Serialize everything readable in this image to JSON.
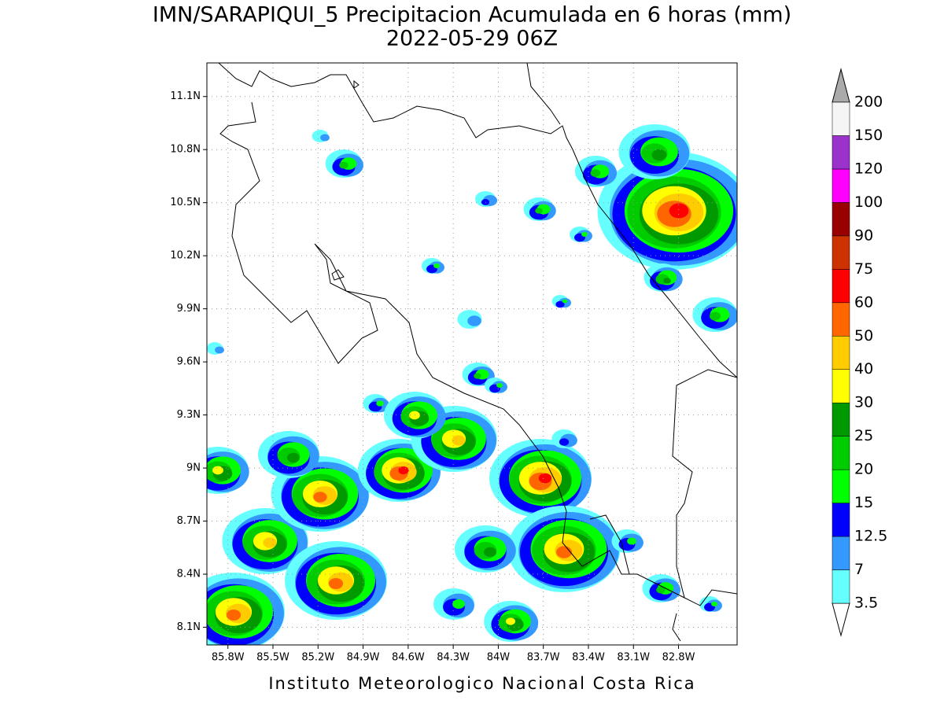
{
  "title": "IMN/SARAPIQUI_5 Precipitacion Acumulada en 6 horas (mm)",
  "subtitle": "2022-05-29 06Z",
  "footer": "Instituto Meteorologico Nacional Costa Rica",
  "map": {
    "xlim": [
      -85.94,
      -82.41
    ],
    "ylim": [
      8.0,
      11.29
    ],
    "grid": true,
    "xticks": [
      {
        "value": -85.8,
        "label": "85.8W"
      },
      {
        "value": -85.5,
        "label": "85.5W"
      },
      {
        "value": -85.2,
        "label": "85.2W"
      },
      {
        "value": -84.9,
        "label": "84.9W"
      },
      {
        "value": -84.6,
        "label": "84.6W"
      },
      {
        "value": -84.3,
        "label": "84.3W"
      },
      {
        "value": -84,
        "label": "84W"
      },
      {
        "value": -83.7,
        "label": "83.7W"
      },
      {
        "value": -83.4,
        "label": "83.4W"
      },
      {
        "value": -83.1,
        "label": "83.1W"
      },
      {
        "value": -82.8,
        "label": "82.8W"
      }
    ],
    "yticks": [
      {
        "value": 8.1,
        "label": "8.1N"
      },
      {
        "value": 8.4,
        "label": "8.4N"
      },
      {
        "value": 8.7,
        "label": "8.7N"
      },
      {
        "value": 9,
        "label": "9N"
      },
      {
        "value": 9.3,
        "label": "9.3N"
      },
      {
        "value": 9.6,
        "label": "9.6N"
      },
      {
        "value": 9.9,
        "label": "9.9N"
      },
      {
        "value": 10.2,
        "label": "10.2N"
      },
      {
        "value": 10.5,
        "label": "10.5N"
      },
      {
        "value": 10.8,
        "label": "10.8N"
      },
      {
        "value": 11.1,
        "label": "11.1N"
      }
    ]
  },
  "colorbar": {
    "levels": [
      3.5,
      7,
      12.5,
      15,
      20,
      25,
      30,
      40,
      50,
      60,
      75,
      90,
      100,
      120,
      150,
      200
    ],
    "colors": [
      "#66ffff",
      "#3399ff",
      "#0000ff",
      "#00ff00",
      "#00cc00",
      "#009900",
      "#ffff00",
      "#ffcc00",
      "#ff6600",
      "#ff0000",
      "#cc3300",
      "#990000",
      "#ff00ff",
      "#9933cc",
      "#f5f5f5"
    ],
    "under_color": "#ffffff",
    "over_color": "#aaaaaa"
  }
}
